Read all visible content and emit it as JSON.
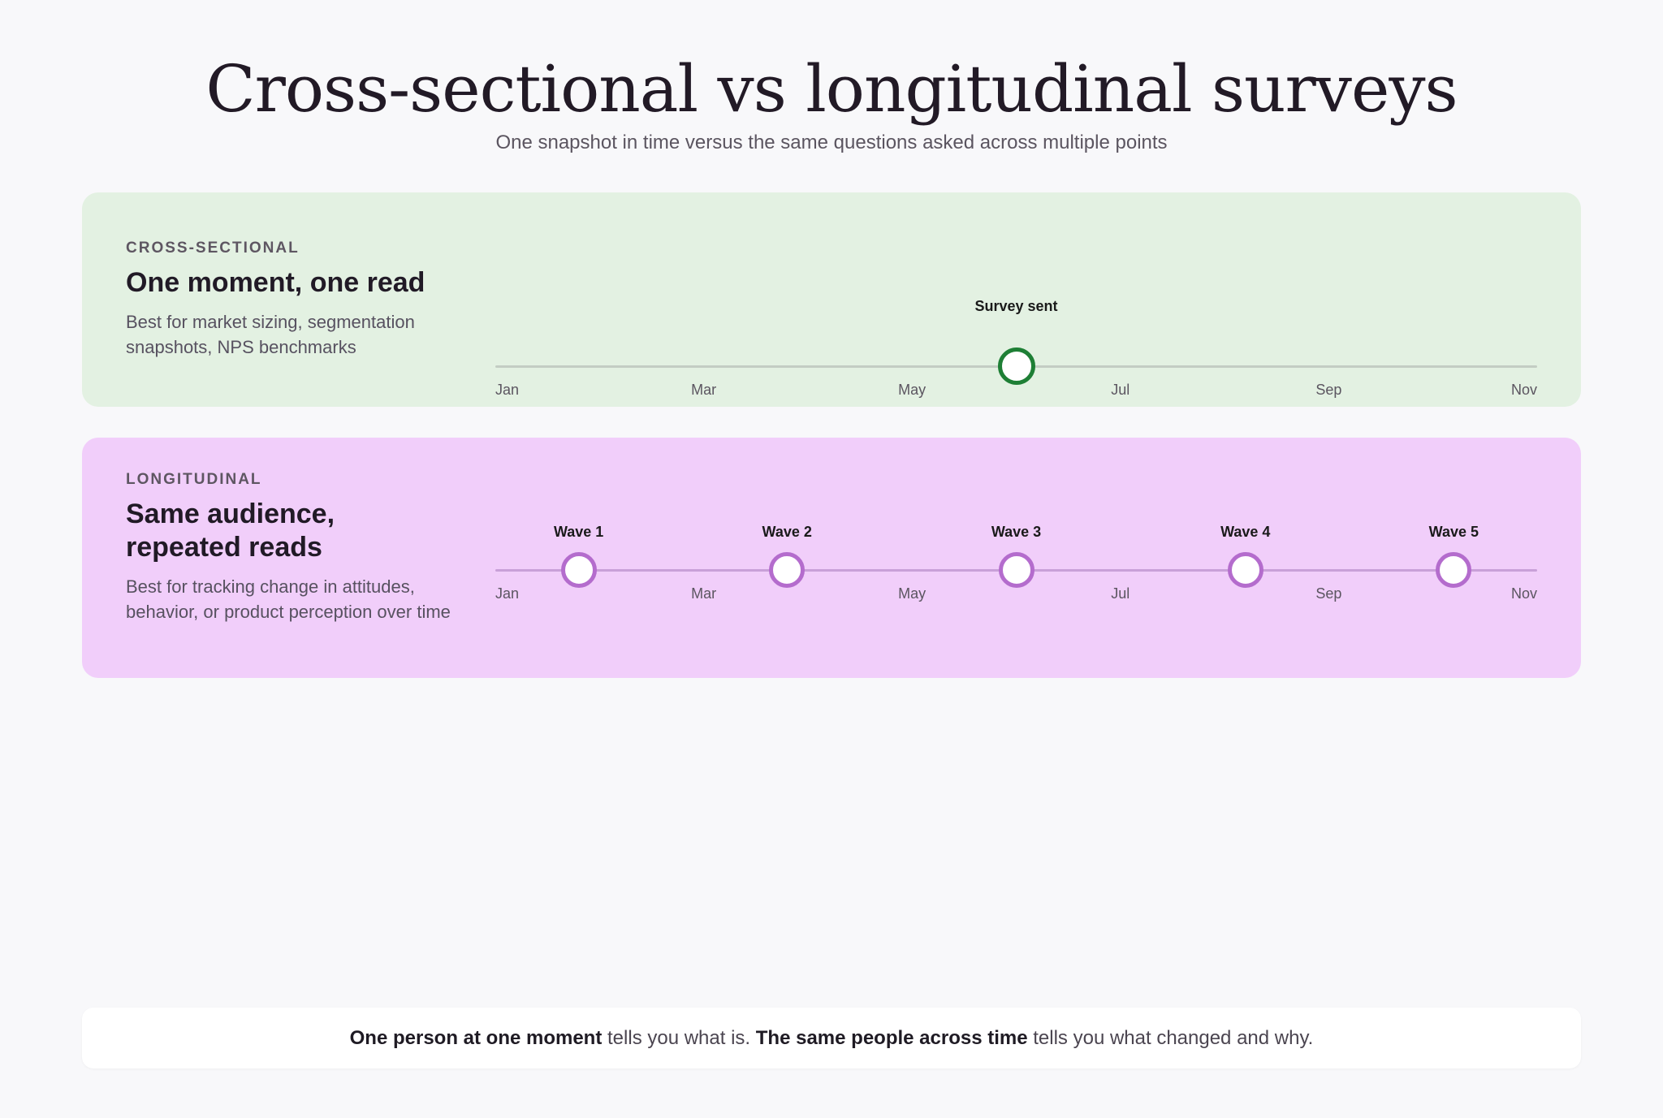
{
  "header": {
    "title": "Cross-sectional vs longitudinal surveys",
    "subtitle": "One snapshot in time versus the same questions asked across multiple points"
  },
  "cross_sectional": {
    "kicker": "CROSS-SECTIONAL",
    "heading": "One moment, one read",
    "description": "Best for market sizing, segmentation snapshots, NPS benchmarks",
    "accent_color": "#1e7f35",
    "background_color": "#e3f1e2",
    "months": [
      "Jan",
      "Mar",
      "May",
      "Jul",
      "Sep",
      "Nov"
    ],
    "events": [
      {
        "label": "Survey sent",
        "month": 6
      }
    ]
  },
  "longitudinal": {
    "kicker": "LONGITUDINAL",
    "heading": "Same audience, repeated reads",
    "description": "Best for tracking change in attitudes, behavior, or product perception over time",
    "accent_color": "#b46ccd",
    "background_color": "#f1cefa",
    "months": [
      "Jan",
      "Mar",
      "May",
      "Jul",
      "Sep",
      "Nov"
    ],
    "events": [
      {
        "label": "Wave 1",
        "month": 1.8
      },
      {
        "label": "Wave 2",
        "month": 3.8
      },
      {
        "label": "Wave 3",
        "month": 6
      },
      {
        "label": "Wave 4",
        "month": 8.2
      },
      {
        "label": "Wave 5",
        "month": 10.2
      }
    ]
  },
  "footer": {
    "part1_bold": "One person at one moment",
    "part2": " tells you what is. ",
    "part3_bold": "The same people across time",
    "part4": " tells you what changed and why."
  }
}
